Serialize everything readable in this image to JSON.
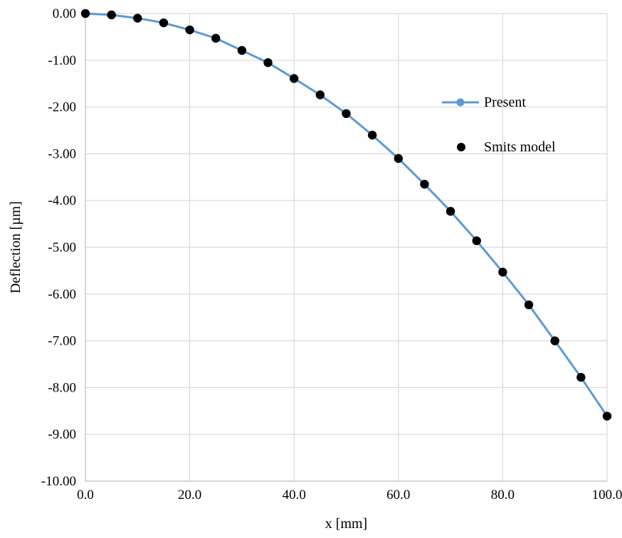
{
  "chart_data": {
    "type": "line",
    "title": "",
    "xlabel": "x [mm]",
    "ylabel": "Deflection [µm]",
    "xlim": [
      0,
      100
    ],
    "ylim": [
      -10,
      0
    ],
    "x_ticks": [
      0,
      20,
      40,
      60,
      80,
      100
    ],
    "x_tick_labels": [
      "0.0",
      "20.0",
      "40.0",
      "60.0",
      "80.0",
      "100.0"
    ],
    "y_ticks": [
      0,
      -1,
      -2,
      -3,
      -4,
      -5,
      -6,
      -7,
      -8,
      -9,
      -10
    ],
    "y_tick_labels": [
      "0.00",
      "-1.00",
      "-2.00",
      "-3.00",
      "-4.00",
      "-5.00",
      "-6.00",
      "-7.00",
      "-8.00",
      "-9.00",
      "-10.00"
    ],
    "grid": true,
    "legend_position": "right",
    "x": [
      0,
      5,
      10,
      15,
      20,
      25,
      30,
      35,
      40,
      45,
      50,
      55,
      60,
      65,
      70,
      75,
      80,
      85,
      90,
      95,
      100
    ],
    "series": [
      {
        "name": "Present",
        "kind": "line",
        "color": "#5b9bd5",
        "values": [
          0.0,
          -0.03,
          -0.1,
          -0.2,
          -0.35,
          -0.53,
          -0.79,
          -1.05,
          -1.39,
          -1.74,
          -2.14,
          -2.6,
          -3.1,
          -3.65,
          -4.23,
          -4.86,
          -5.53,
          -6.23,
          -7.0,
          -7.78,
          -8.61
        ]
      },
      {
        "name": "Smits model",
        "kind": "scatter",
        "color": "#000000",
        "values": [
          0.0,
          -0.03,
          -0.1,
          -0.2,
          -0.35,
          -0.53,
          -0.79,
          -1.05,
          -1.39,
          -1.74,
          -2.14,
          -2.6,
          -3.1,
          -3.65,
          -4.23,
          -4.86,
          -5.53,
          -6.23,
          -7.0,
          -7.78,
          -8.61
        ]
      }
    ]
  }
}
